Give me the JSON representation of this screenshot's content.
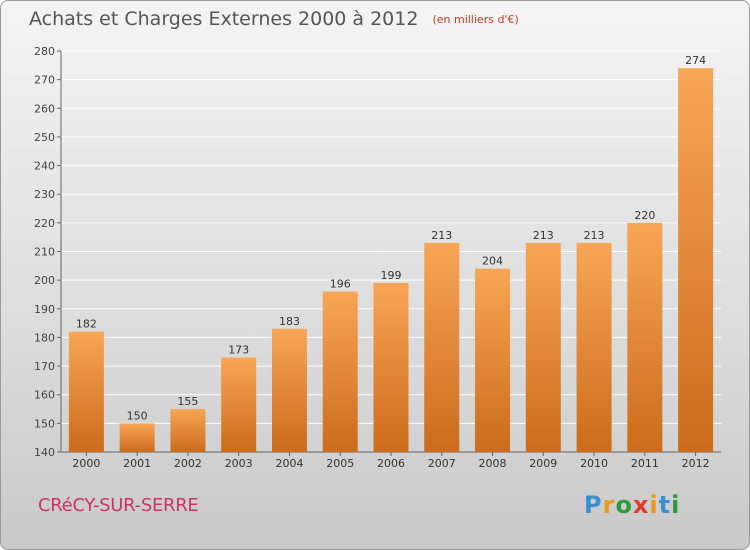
{
  "title": "Achats et Charges Externes 2000 à 2012",
  "subtitle": "(en milliers d'€)",
  "place": "CRéCY-SUR-SERRE",
  "logo": {
    "letters": [
      "P",
      "r",
      "o",
      "x",
      "i",
      "t",
      "i"
    ],
    "colors": [
      "#3a8fd0",
      "#e89a1a",
      "#2f9a3c",
      "#e03c2c",
      "#e89a1a",
      "#3a8fd0",
      "#2f9a3c"
    ]
  },
  "colors": {
    "bar_top": "#f7a655",
    "bar_bottom": "#cc6b1c",
    "grid": "#ffffff",
    "axis": "#666666"
  },
  "chart_data": {
    "type": "bar",
    "categories": [
      "2000",
      "2001",
      "2002",
      "2003",
      "2004",
      "2005",
      "2006",
      "2007",
      "2008",
      "2009",
      "2010",
      "2011",
      "2012"
    ],
    "values": [
      182,
      150,
      155,
      173,
      183,
      196,
      199,
      213,
      204,
      213,
      213,
      220,
      274
    ],
    "ylim": [
      140,
      280
    ],
    "yticks": [
      140,
      150,
      160,
      170,
      180,
      190,
      200,
      210,
      220,
      230,
      240,
      250,
      260,
      270,
      280
    ],
    "grid": true
  }
}
